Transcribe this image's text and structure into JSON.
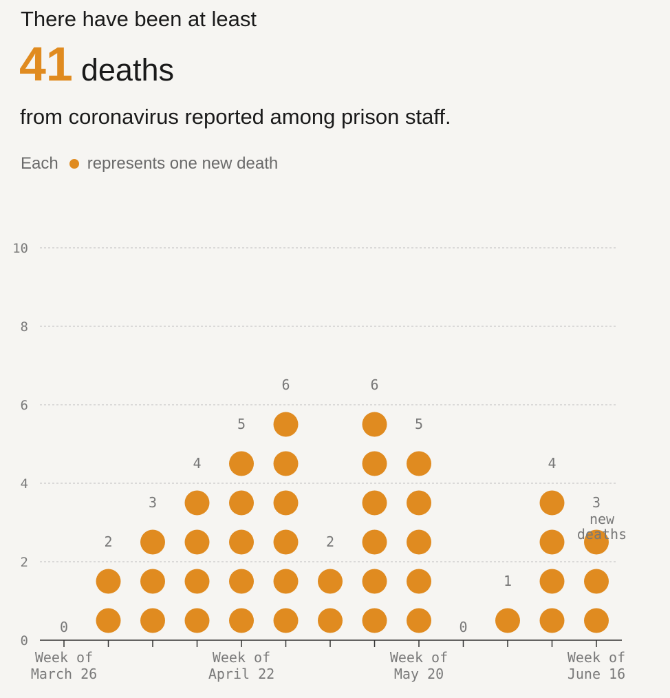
{
  "header": {
    "intro": "There have been at least",
    "total": "41",
    "total_label": "deaths",
    "subline": "from coronavirus reported among prison staff.",
    "legend_prefix": "Each",
    "legend_suffix": "represents one new death"
  },
  "colors": {
    "dot": "#e08b20",
    "grid": "#bdbdbd",
    "axis_text": "#7a7a7a",
    "label_text": "#777777"
  },
  "chart_data": {
    "type": "scatter",
    "title": "",
    "xlabel": "",
    "ylabel": "",
    "ylim": [
      0,
      10
    ],
    "yticks": [
      0,
      2,
      4,
      6,
      8,
      10
    ],
    "grid": true,
    "categories": [
      "Week of March 26",
      "",
      "",
      "",
      "Week of April 22",
      "",
      "",
      "",
      "Week of May 20",
      "",
      "",
      "",
      "Week of June 16"
    ],
    "x_tick_labels": [
      {
        "line1": "Week of",
        "line2": "March 26"
      },
      {
        "line1": "Week of",
        "line2": "April 22"
      },
      {
        "line1": "Week of",
        "line2": "May 20"
      },
      {
        "line1": "Week of",
        "line2": "June 16"
      }
    ],
    "values": [
      0,
      2,
      3,
      4,
      5,
      6,
      2,
      6,
      5,
      0,
      1,
      4,
      3
    ],
    "last_label_suffix": [
      "new",
      "deaths"
    ]
  }
}
